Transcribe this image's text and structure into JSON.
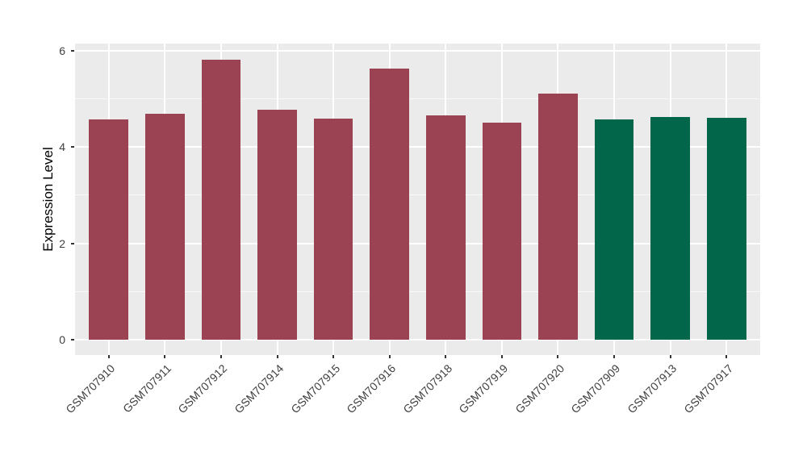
{
  "figure": {
    "background": "#FFFFFF",
    "panel_background": "#EBEBEB",
    "grid_major_color": "#FFFFFF",
    "grid_minor_color": "#FFFFFF",
    "tick_color": "#333333",
    "axis_text_color": "#404040",
    "axis_title_color": "#000000"
  },
  "chart_data": {
    "type": "bar",
    "title": "",
    "xlabel": "",
    "ylabel": "Expression Level",
    "categories": [
      "GSM707910",
      "GSM707911",
      "GSM707912",
      "GSM707914",
      "GSM707915",
      "GSM707916",
      "GSM707918",
      "GSM707919",
      "GSM707920",
      "GSM707909",
      "GSM707913",
      "GSM707917"
    ],
    "values": [
      4.57,
      4.69,
      5.81,
      4.78,
      4.59,
      5.63,
      4.65,
      4.5,
      5.11,
      4.58,
      4.62,
      4.6
    ],
    "bar_colors": [
      "#9B4352",
      "#9B4352",
      "#9B4352",
      "#9B4352",
      "#9B4352",
      "#9B4352",
      "#9B4352",
      "#9B4352",
      "#9B4352",
      "#02664A",
      "#02664A",
      "#02664A"
    ],
    "group_colors": {
      "red_group": "#9B4352",
      "green_group": "#02664A"
    },
    "yticks": [
      0,
      2,
      4,
      6
    ],
    "yticks_minor": [
      1,
      3,
      5
    ],
    "ylim_panel": [
      -0.32,
      6.15
    ],
    "xlim_panel": [
      0.4,
      12.6
    ],
    "bar_width": 0.7,
    "grid": true,
    "legend": "none",
    "x_tick_angle": 45
  }
}
